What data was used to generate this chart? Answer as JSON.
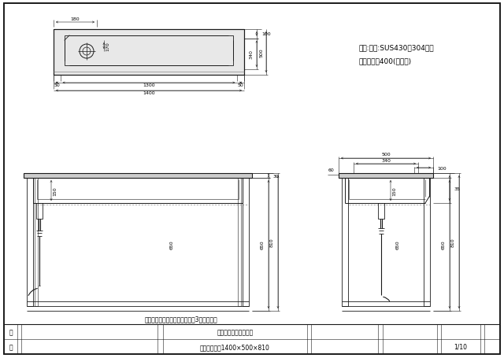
{
  "bg_color": "#ffffff",
  "line_color": "#1a1a1a",
  "text_spec1": "寸法:素材:SUS430、304共通",
  "text_spec2": "仕上げ：＃400(ミガキ)",
  "text_bottom": "下段スノコ棚なし　前面開口　3方向枠のみ",
  "tb_company": "株式会社ワンコライフ",
  "tb_product": "手洗いシンク1400×500×810",
  "tb_scale": "1/10",
  "tb_row1": "打",
  "tb_row2": "正",
  "dim_180": "180",
  "dim_170": "170",
  "dim_100": "100",
  "dim_340": "340",
  "dim_500": "500",
  "dim_50": "50",
  "dim_1300": "1300",
  "dim_1400": "1400",
  "dim_30": "30",
  "dim_150": "150",
  "dim_650": "650",
  "dim_810": "810",
  "dim_60": "60"
}
